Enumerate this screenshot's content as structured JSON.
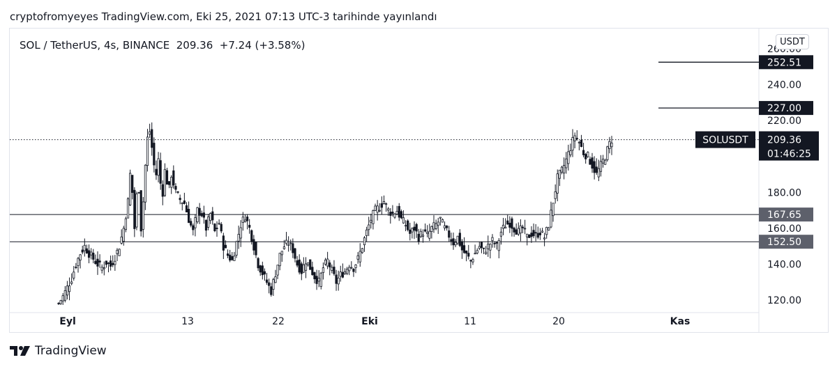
{
  "header": {
    "publish_line": "cryptofromyeyes TradingView.com, Eki 25, 2021 07:13 UTC-3 tarihinde yayınlandı"
  },
  "symbol": {
    "pair": "SOL / TetherUS, 4s, BINANCE",
    "price": "209.36",
    "change": "+7.24 (+3.58%)"
  },
  "currency_button": "USDT",
  "logo_text": "TradingView",
  "colors": {
    "candle": "#131722",
    "label_bg": "#131722",
    "level_label_bg": "#5d606b",
    "grid": "#e0e3eb"
  },
  "chart_data": {
    "type": "candlestick",
    "symbol": "SOLUSDT",
    "ylim": [
      116,
      266
    ],
    "y_ticks": [
      "120.00",
      "140.00",
      "160.00",
      "180.00",
      "220.00",
      "240.00",
      "260.00"
    ],
    "x_ticks": [
      {
        "label": "Eyl",
        "bold": true
      },
      {
        "label": "13",
        "bold": false
      },
      {
        "label": "22",
        "bold": false
      },
      {
        "label": "Eki",
        "bold": true
      },
      {
        "label": "11",
        "bold": false
      },
      {
        "label": "20",
        "bold": false
      },
      {
        "label": "Kas",
        "bold": true
      }
    ],
    "last_price": {
      "symbol": "SOLUSDT",
      "value": "209.36",
      "countdown": "01:46:25"
    },
    "horizontal_levels": [
      {
        "value": 167.65,
        "label": "167.65",
        "span": "full"
      },
      {
        "value": 152.5,
        "label": "152.50",
        "span": "full"
      }
    ],
    "ray_levels": [
      {
        "value": 252.51,
        "label": "252.51"
      },
      {
        "value": 227.0,
        "label": "227.00"
      }
    ],
    "close_path": [
      [
        0,
        118
      ],
      [
        2,
        122
      ],
      [
        4,
        127
      ],
      [
        6,
        132
      ],
      [
        8,
        140
      ],
      [
        10,
        146
      ],
      [
        12,
        150
      ],
      [
        14,
        146
      ],
      [
        16,
        143
      ],
      [
        18,
        140
      ],
      [
        20,
        138
      ],
      [
        22,
        141
      ],
      [
        24,
        139
      ],
      [
        26,
        144
      ],
      [
        28,
        150
      ],
      [
        30,
        160
      ],
      [
        32,
        175
      ],
      [
        33,
        190
      ],
      [
        34,
        180
      ],
      [
        35,
        160
      ],
      [
        36,
        178
      ],
      [
        37,
        182
      ],
      [
        38,
        160
      ],
      [
        39,
        175
      ],
      [
        40,
        195
      ],
      [
        41,
        210
      ],
      [
        42,
        214
      ],
      [
        43,
        205
      ],
      [
        44,
        195
      ],
      [
        45,
        190
      ],
      [
        46,
        198
      ],
      [
        47,
        185
      ],
      [
        48,
        180
      ],
      [
        49,
        192
      ],
      [
        50,
        186
      ],
      [
        51,
        182
      ],
      [
        52,
        190
      ],
      [
        54,
        180
      ],
      [
        56,
        176
      ],
      [
        58,
        174
      ],
      [
        60,
        165
      ],
      [
        62,
        158
      ],
      [
        64,
        170
      ],
      [
        66,
        168
      ],
      [
        68,
        160
      ],
      [
        70,
        168
      ],
      [
        72,
        158
      ],
      [
        74,
        163
      ],
      [
        76,
        150
      ],
      [
        78,
        145
      ],
      [
        80,
        142
      ],
      [
        82,
        152
      ],
      [
        84,
        162
      ],
      [
        86,
        167
      ],
      [
        88,
        160
      ],
      [
        90,
        150
      ],
      [
        92,
        140
      ],
      [
        94,
        135
      ],
      [
        96,
        130
      ],
      [
        98,
        125
      ],
      [
        100,
        135
      ],
      [
        102,
        145
      ],
      [
        104,
        150
      ],
      [
        106,
        152
      ],
      [
        108,
        148
      ],
      [
        110,
        140
      ],
      [
        112,
        136
      ],
      [
        114,
        142
      ],
      [
        116,
        138
      ],
      [
        118,
        133
      ],
      [
        120,
        130
      ],
      [
        122,
        138
      ],
      [
        124,
        142
      ],
      [
        126,
        136
      ],
      [
        128,
        130
      ],
      [
        130,
        134
      ],
      [
        132,
        136
      ],
      [
        134,
        140
      ],
      [
        136,
        138
      ],
      [
        138,
        143
      ],
      [
        140,
        150
      ],
      [
        142,
        158
      ],
      [
        144,
        165
      ],
      [
        146,
        170
      ],
      [
        148,
        172
      ],
      [
        150,
        175
      ],
      [
        152,
        170
      ],
      [
        154,
        168
      ],
      [
        156,
        170
      ],
      [
        158,
        165
      ],
      [
        160,
        162
      ],
      [
        162,
        157
      ],
      [
        164,
        160
      ],
      [
        166,
        155
      ],
      [
        168,
        158
      ],
      [
        170,
        156
      ],
      [
        172,
        160
      ],
      [
        174,
        162
      ],
      [
        176,
        165
      ],
      [
        178,
        160
      ],
      [
        180,
        156
      ],
      [
        182,
        152
      ],
      [
        184,
        155
      ],
      [
        186,
        148
      ],
      [
        188,
        145
      ],
      [
        190,
        142
      ],
      [
        192,
        146
      ],
      [
        194,
        150
      ],
      [
        196,
        147
      ],
      [
        198,
        150
      ],
      [
        200,
        153
      ],
      [
        202,
        150
      ],
      [
        204,
        158
      ],
      [
        206,
        162
      ],
      [
        208,
        163
      ],
      [
        210,
        160
      ],
      [
        212,
        158
      ],
      [
        214,
        160
      ],
      [
        216,
        155
      ],
      [
        218,
        157
      ],
      [
        220,
        156
      ],
      [
        222,
        158
      ],
      [
        224,
        155
      ],
      [
        226,
        162
      ],
      [
        228,
        175
      ],
      [
        230,
        188
      ],
      [
        232,
        192
      ],
      [
        234,
        198
      ],
      [
        236,
        205
      ],
      [
        238,
        212
      ],
      [
        240,
        208
      ],
      [
        242,
        202
      ],
      [
        244,
        200
      ],
      [
        246,
        195
      ],
      [
        248,
        190
      ],
      [
        250,
        195
      ],
      [
        252,
        200
      ],
      [
        254,
        207
      ],
      [
        255,
        209.36
      ]
    ]
  }
}
